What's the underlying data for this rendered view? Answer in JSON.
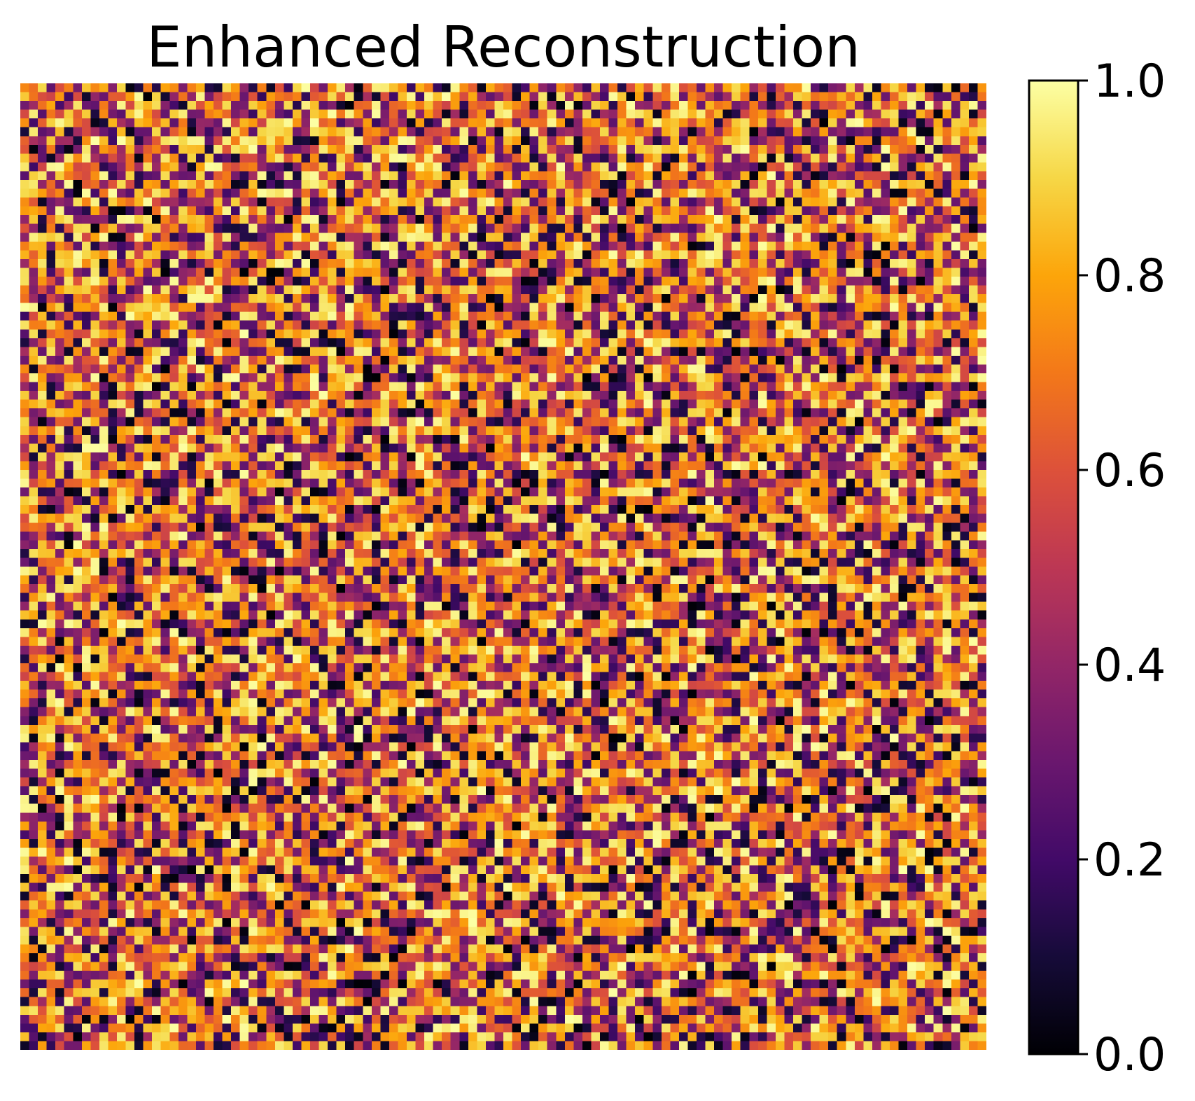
{
  "title": "Enhanced Reconstruction",
  "chart_data": {
    "type": "heatmap",
    "title": "Enhanced Reconstruction",
    "xlabel": "",
    "ylabel": "",
    "grid_size": [
      110,
      110
    ],
    "values_description_range": [
      0.0,
      1.0
    ],
    "colormap": "inferno",
    "axes_visible": false,
    "colorbar": {
      "vmin": 0.0,
      "vmax": 1.0,
      "ticks": [
        0.0,
        0.2,
        0.4,
        0.6,
        0.8,
        1.0
      ],
      "tick_labels": [
        "0.0",
        "0.2",
        "0.4",
        "0.6",
        "0.8",
        "1.0"
      ],
      "placement": "right"
    },
    "generation": {
      "seed": 20240611,
      "low_value_fraction": 0.18,
      "high_value_fraction": 0.22
    }
  }
}
